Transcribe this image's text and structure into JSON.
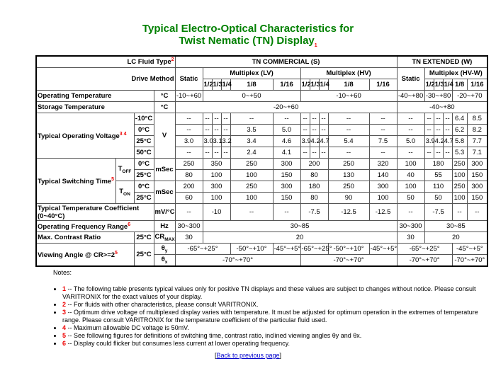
{
  "title": {
    "line1": "Typical Electro-Optical Characteristics for",
    "line2": "Twist Nematic (TN) Display",
    "note": "1"
  },
  "table": {
    "rows": [
      [
        {
          "text": "LC Fluid Type",
          "note": "2"
        },
        "TN COMMERCIAL (S)",
        "TN EXTENDED (W)"
      ],
      [
        "Drive Method",
        "Static",
        "Multiplex (LV)",
        "Multiplex (HV)",
        "Static",
        "Multiplex (HV-W)"
      ],
      [
        "1/2",
        "1/3",
        "1/4",
        "1/8",
        "1/16",
        "1/2",
        "1/3",
        "1/4",
        "1/8",
        "1/16",
        "1/2",
        "1/3",
        "1/4",
        "1/8",
        "1/16"
      ],
      [
        "Operating Temperature",
        "°C",
        "-10~+60",
        "0~+50",
        "-10~+60",
        "-40~+80",
        "-30~+80",
        "-20~+70"
      ],
      [
        "Storage Temperature",
        "°C",
        "-20~+60",
        "-40~+80"
      ],
      [
        {
          "text": "Typical Operating Voltage",
          "note": "3 4"
        },
        "-10°C",
        "V",
        "--",
        "--",
        "--",
        "--",
        "--",
        "--",
        "--",
        "--",
        "--",
        "--",
        "--",
        "--",
        "--",
        "--",
        "--",
        "6.4",
        "8.5"
      ],
      [
        "0°C",
        "--",
        "--",
        "--",
        "--",
        "3.5",
        "5.0",
        "--",
        "--",
        "--",
        "--",
        "--",
        "--",
        "--",
        "--",
        "--",
        "6.2",
        "8.2"
      ],
      [
        "25°C",
        "3.0",
        "3.0",
        "3.1",
        "3.2",
        "3.4",
        "4.6",
        "3.9",
        "4.2",
        "4.7",
        "5.4",
        "7.5",
        "5.0",
        "3.9",
        "4.2",
        "4.7",
        "5.8",
        "7.7"
      ],
      [
        "50°C",
        "--",
        "--",
        "--",
        "--",
        "2.4",
        "4.1",
        "--",
        "--",
        "--",
        "--",
        "--",
        "--",
        "--",
        "--",
        "--",
        "5.3",
        "7.1"
      ],
      [
        {
          "text": "Typical Switching Time",
          "note": "5"
        },
        {
          "text": "T",
          "sub": "OFF"
        },
        "0°C",
        "mSec",
        "250",
        "350",
        "250",
        "300",
        "200",
        "250",
        "320",
        "100",
        "180",
        "250",
        "300"
      ],
      [
        "25°C",
        "80",
        "100",
        "100",
        "150",
        "80",
        "130",
        "140",
        "40",
        "55",
        "100",
        "150"
      ],
      [
        {
          "text": "T",
          "sub": "ON"
        },
        "0°C",
        "mSec",
        "200",
        "300",
        "250",
        "300",
        "180",
        "250",
        "300",
        "100",
        "110",
        "250",
        "300"
      ],
      [
        "25°C",
        "60",
        "100",
        "100",
        "150",
        "80",
        "90",
        "100",
        "50",
        "50",
        "100",
        "150"
      ],
      [
        "Typical Temperature Coefficient (0~40°C)",
        "mV/°C",
        "--",
        "-10",
        "--",
        "--",
        "-7.5",
        "-12.5",
        "-12.5",
        "--",
        "-7.5",
        "--",
        "--"
      ],
      [
        {
          "text": "Operating Frequency Range",
          "note": "6"
        },
        "Hz",
        "30~300",
        "30~85",
        "30~300",
        "30~85"
      ],
      [
        "Max. Contrast Ratio",
        "25°C",
        {
          "text": "CR",
          "sub": "MAX"
        },
        "30",
        "20",
        "30",
        "20"
      ],
      [
        {
          "text": "Viewing Angle @ CR>=2",
          "note": "5"
        },
        "25°C",
        {
          "text": "θ",
          "sub": "y"
        },
        "-65°~+25°",
        "-50°~+10°",
        "-45°~+5°",
        "-65°~+25°",
        "-50°~+10°",
        "-45°~+5°",
        "-65°~+25°",
        "-45°~+5°"
      ],
      [
        {
          "text": "θ",
          "sub": "x"
        },
        "-70°~+70°",
        "-70°~+70°",
        "-70°~+70°",
        "-70°~+70°"
      ]
    ]
  },
  "notes": {
    "heading": "Notes:",
    "items": [
      {
        "num": "1",
        "text": "-- The following table presents typical values only for positive TN displays and these values are subject to changes without notice. Please consult VARITRONIX for the exact values of your display."
      },
      {
        "num": "2",
        "text": "-- For fluids with other characteristics, please consult VARITRONIX."
      },
      {
        "num": "3",
        "text": "-- Optimum drive voltage of multiplexed display varies with temperature. It must be adjusted for optimum operation in the extremes of temperature range. Please consult VARITRONIX for the temperature coefficient of the particular fluid used."
      },
      {
        "num": "4",
        "text": "-- Maximum allowable DC voltage is 50mV."
      },
      {
        "num": "5",
        "text": "-- See following figures for definitions of switching time, contrast ratio, inclined viewing angles θy and θx."
      },
      {
        "num": "6",
        "text": "-- Display could flicker but consumes less current at lower operating frequency."
      }
    ]
  },
  "back": {
    "open": "[",
    "link": "Back to previous page",
    "close": "]"
  }
}
